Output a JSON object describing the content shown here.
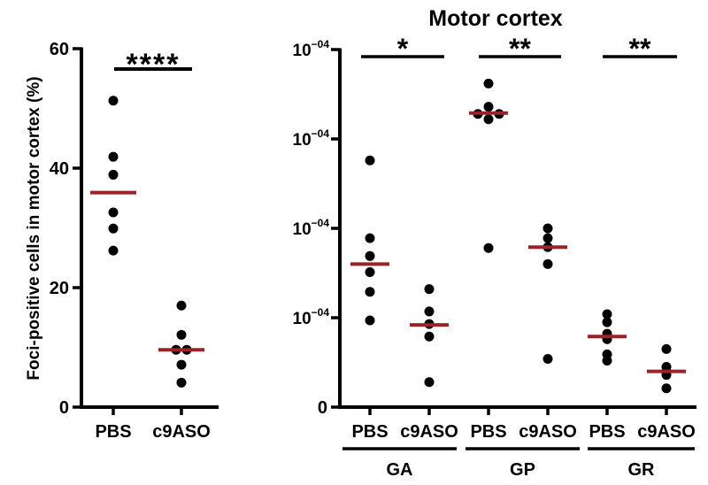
{
  "chart_data": [
    {
      "type": "scatter",
      "title": "",
      "ylabel": "Foci-positive cells in motor cortex (%)",
      "ylim": [
        0,
        60
      ],
      "yticks": [
        "0",
        "20",
        "40",
        "60"
      ],
      "ytick_values": [
        0,
        20,
        40,
        60
      ],
      "categories": [
        "PBS",
        "c9ASO"
      ],
      "series": [
        {
          "name": "PBS",
          "values": [
            51.3,
            41.9,
            38.9,
            32.6,
            29.9,
            26.2
          ],
          "mean": 35.9
        },
        {
          "name": "c9ASO",
          "values": [
            17.0,
            12.1,
            9.6,
            9.6,
            7.1,
            4.1
          ],
          "mean": 9.6
        }
      ],
      "significance": [
        {
          "from": "PBS",
          "to": "c9ASO",
          "label": "****"
        }
      ],
      "colors": {
        "points": "#000000",
        "mean": "#9b2226"
      }
    },
    {
      "type": "scatter",
      "title": "Motor cortex",
      "ylabel": "",
      "ylim": [
        0,
        4
      ],
      "yticks": [
        "0",
        "10−04",
        "10−04",
        "10−04",
        "10−04"
      ],
      "ytick_values": [
        0,
        1,
        2,
        3,
        4
      ],
      "groups": [
        {
          "name": "GA",
          "significance": "*",
          "series": [
            {
              "name": "PBS",
              "values": [
                2.76,
                1.89,
                1.69,
                1.51,
                1.29,
                0.97
              ],
              "mean": 1.6
            },
            {
              "name": "c9ASO",
              "values": [
                1.32,
                1.07,
                0.93,
                0.79,
                0.28
              ],
              "mean": 0.92
            }
          ]
        },
        {
          "name": "GP",
          "significance": "**",
          "series": [
            {
              "name": "PBS",
              "values": [
                3.62,
                3.36,
                3.28,
                3.28,
                3.22,
                1.78
              ],
              "mean": 3.29
            },
            {
              "name": "c9ASO",
              "values": [
                2.0,
                1.89,
                1.79,
                1.6,
                0.54
              ],
              "mean": 1.79
            }
          ]
        },
        {
          "name": "GR",
          "significance": "**",
          "series": [
            {
              "name": "PBS",
              "values": [
                1.04,
                0.95,
                0.82,
                0.76,
                0.59,
                0.52
              ],
              "mean": 0.79
            },
            {
              "name": "c9ASO",
              "values": [
                0.65,
                0.45,
                0.4,
                0.36,
                0.21
              ],
              "mean": 0.4
            }
          ]
        }
      ],
      "colors": {
        "points": "#000000",
        "mean": "#9b2226"
      }
    }
  ]
}
